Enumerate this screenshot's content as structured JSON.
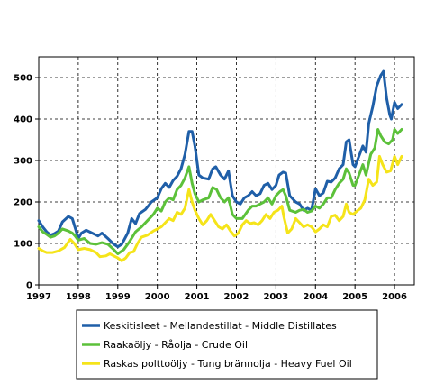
{
  "chart_data": {
    "type": "line",
    "title": "",
    "xlabel": "",
    "ylabel": "",
    "xlim": [
      1997.0,
      2006.5
    ],
    "ylim": [
      0,
      550
    ],
    "x_ticks": [
      "1997",
      "1998",
      "1999",
      "2000",
      "2001",
      "2002",
      "2003",
      "2004",
      "2005",
      "2006"
    ],
    "y_ticks": [
      "0",
      "100",
      "200",
      "300",
      "400",
      "500"
    ],
    "grid": true,
    "legend_position": "bottom",
    "series": [
      {
        "name": "Keskitisleet - Mellandestillat - Middle Distillates",
        "color": "#1f5fa8",
        "points": [
          [
            1997.0,
            155
          ],
          [
            1997.1,
            140
          ],
          [
            1997.2,
            128
          ],
          [
            1997.3,
            120
          ],
          [
            1997.4,
            124
          ],
          [
            1997.5,
            130
          ],
          [
            1997.6,
            152
          ],
          [
            1997.75,
            165
          ],
          [
            1997.85,
            160
          ],
          [
            1997.92,
            138
          ],
          [
            1998.0,
            112
          ],
          [
            1998.08,
            125
          ],
          [
            1998.2,
            132
          ],
          [
            1998.35,
            125
          ],
          [
            1998.5,
            118
          ],
          [
            1998.6,
            125
          ],
          [
            1998.75,
            112
          ],
          [
            1998.9,
            98
          ],
          [
            1999.0,
            92
          ],
          [
            1999.1,
            98
          ],
          [
            1999.25,
            125
          ],
          [
            1999.35,
            160
          ],
          [
            1999.45,
            148
          ],
          [
            1999.55,
            172
          ],
          [
            1999.7,
            182
          ],
          [
            1999.85,
            200
          ],
          [
            2000.0,
            210
          ],
          [
            2000.1,
            232
          ],
          [
            2000.2,
            245
          ],
          [
            2000.3,
            235
          ],
          [
            2000.4,
            252
          ],
          [
            2000.5,
            262
          ],
          [
            2000.6,
            280
          ],
          [
            2000.7,
            315
          ],
          [
            2000.8,
            370
          ],
          [
            2000.88,
            370
          ],
          [
            2000.95,
            335
          ],
          [
            2001.05,
            265
          ],
          [
            2001.15,
            258
          ],
          [
            2001.3,
            255
          ],
          [
            2001.4,
            280
          ],
          [
            2001.48,
            285
          ],
          [
            2001.6,
            265
          ],
          [
            2001.7,
            255
          ],
          [
            2001.8,
            275
          ],
          [
            2001.9,
            215
          ],
          [
            2002.0,
            200
          ],
          [
            2002.1,
            195
          ],
          [
            2002.2,
            210
          ],
          [
            2002.3,
            215
          ],
          [
            2002.4,
            225
          ],
          [
            2002.5,
            215
          ],
          [
            2002.6,
            220
          ],
          [
            2002.7,
            240
          ],
          [
            2002.8,
            245
          ],
          [
            2002.9,
            230
          ],
          [
            2003.0,
            240
          ],
          [
            2003.08,
            265
          ],
          [
            2003.18,
            272
          ],
          [
            2003.25,
            270
          ],
          [
            2003.35,
            215
          ],
          [
            2003.5,
            200
          ],
          [
            2003.6,
            195
          ],
          [
            2003.7,
            180
          ],
          [
            2003.8,
            185
          ],
          [
            2003.9,
            180
          ],
          [
            2004.0,
            232
          ],
          [
            2004.1,
            215
          ],
          [
            2004.2,
            222
          ],
          [
            2004.3,
            250
          ],
          [
            2004.4,
            248
          ],
          [
            2004.5,
            258
          ],
          [
            2004.6,
            280
          ],
          [
            2004.7,
            290
          ],
          [
            2004.78,
            345
          ],
          [
            2004.85,
            350
          ],
          [
            2004.95,
            290
          ],
          [
            2005.0,
            285
          ],
          [
            2005.1,
            310
          ],
          [
            2005.2,
            335
          ],
          [
            2005.28,
            320
          ],
          [
            2005.35,
            390
          ],
          [
            2005.45,
            430
          ],
          [
            2005.55,
            480
          ],
          [
            2005.65,
            505
          ],
          [
            2005.72,
            515
          ],
          [
            2005.8,
            450
          ],
          [
            2005.88,
            410
          ],
          [
            2005.92,
            400
          ],
          [
            2006.0,
            440
          ],
          [
            2006.08,
            425
          ],
          [
            2006.18,
            435
          ]
        ]
      },
      {
        "name": "Raakaöljy - Råolja - Crude Oil",
        "color": "#5cc13a",
        "points": [
          [
            1997.0,
            140
          ],
          [
            1997.1,
            128
          ],
          [
            1997.2,
            122
          ],
          [
            1997.3,
            115
          ],
          [
            1997.4,
            118
          ],
          [
            1997.5,
            125
          ],
          [
            1997.6,
            135
          ],
          [
            1997.75,
            130
          ],
          [
            1997.85,
            125
          ],
          [
            1997.92,
            118
          ],
          [
            1998.0,
            108
          ],
          [
            1998.15,
            112
          ],
          [
            1998.3,
            100
          ],
          [
            1998.45,
            98
          ],
          [
            1998.6,
            102
          ],
          [
            1998.75,
            98
          ],
          [
            1998.9,
            85
          ],
          [
            1999.0,
            75
          ],
          [
            1999.15,
            85
          ],
          [
            1999.3,
            105
          ],
          [
            1999.45,
            128
          ],
          [
            1999.6,
            140
          ],
          [
            1999.75,
            155
          ],
          [
            1999.9,
            170
          ],
          [
            2000.0,
            185
          ],
          [
            2000.1,
            178
          ],
          [
            2000.2,
            200
          ],
          [
            2000.3,
            210
          ],
          [
            2000.4,
            205
          ],
          [
            2000.5,
            230
          ],
          [
            2000.6,
            240
          ],
          [
            2000.7,
            258
          ],
          [
            2000.8,
            285
          ],
          [
            2000.88,
            245
          ],
          [
            2000.95,
            220
          ],
          [
            2001.05,
            200
          ],
          [
            2001.15,
            205
          ],
          [
            2001.3,
            210
          ],
          [
            2001.4,
            235
          ],
          [
            2001.5,
            230
          ],
          [
            2001.6,
            210
          ],
          [
            2001.7,
            200
          ],
          [
            2001.8,
            210
          ],
          [
            2001.9,
            170
          ],
          [
            2002.0,
            160
          ],
          [
            2002.15,
            160
          ],
          [
            2002.3,
            180
          ],
          [
            2002.4,
            190
          ],
          [
            2002.5,
            190
          ],
          [
            2002.6,
            195
          ],
          [
            2002.7,
            200
          ],
          [
            2002.8,
            210
          ],
          [
            2002.9,
            195
          ],
          [
            2003.0,
            215
          ],
          [
            2003.1,
            225
          ],
          [
            2003.18,
            230
          ],
          [
            2003.25,
            215
          ],
          [
            2003.35,
            180
          ],
          [
            2003.5,
            175
          ],
          [
            2003.6,
            180
          ],
          [
            2003.7,
            182
          ],
          [
            2003.8,
            175
          ],
          [
            2003.9,
            178
          ],
          [
            2004.0,
            190
          ],
          [
            2004.1,
            185
          ],
          [
            2004.2,
            195
          ],
          [
            2004.3,
            210
          ],
          [
            2004.4,
            210
          ],
          [
            2004.5,
            230
          ],
          [
            2004.6,
            245
          ],
          [
            2004.7,
            255
          ],
          [
            2004.78,
            280
          ],
          [
            2004.85,
            270
          ],
          [
            2004.95,
            240
          ],
          [
            2005.0,
            240
          ],
          [
            2005.1,
            265
          ],
          [
            2005.2,
            290
          ],
          [
            2005.28,
            265
          ],
          [
            2005.4,
            315
          ],
          [
            2005.5,
            330
          ],
          [
            2005.58,
            375
          ],
          [
            2005.65,
            360
          ],
          [
            2005.75,
            345
          ],
          [
            2005.85,
            340
          ],
          [
            2005.95,
            350
          ],
          [
            2006.0,
            375
          ],
          [
            2006.08,
            365
          ],
          [
            2006.18,
            375
          ]
        ]
      },
      {
        "name": "Raskas polttoöljy - Tung brännolja - Heavy Fuel Oil",
        "color": "#f5e41a",
        "points": [
          [
            1997.0,
            88
          ],
          [
            1997.1,
            82
          ],
          [
            1997.2,
            78
          ],
          [
            1997.35,
            78
          ],
          [
            1997.5,
            82
          ],
          [
            1997.65,
            90
          ],
          [
            1997.8,
            110
          ],
          [
            1997.9,
            100
          ],
          [
            1998.0,
            85
          ],
          [
            1998.15,
            88
          ],
          [
            1998.3,
            85
          ],
          [
            1998.45,
            78
          ],
          [
            1998.55,
            68
          ],
          [
            1998.7,
            70
          ],
          [
            1998.8,
            75
          ],
          [
            1998.9,
            70
          ],
          [
            1999.0,
            65
          ],
          [
            1999.1,
            58
          ],
          [
            1999.2,
            65
          ],
          [
            1999.3,
            78
          ],
          [
            1999.4,
            80
          ],
          [
            1999.5,
            100
          ],
          [
            1999.6,
            115
          ],
          [
            1999.75,
            120
          ],
          [
            1999.9,
            130
          ],
          [
            2000.0,
            135
          ],
          [
            2000.1,
            140
          ],
          [
            2000.2,
            150
          ],
          [
            2000.3,
            160
          ],
          [
            2000.4,
            155
          ],
          [
            2000.5,
            175
          ],
          [
            2000.6,
            170
          ],
          [
            2000.7,
            185
          ],
          [
            2000.8,
            230
          ],
          [
            2000.88,
            200
          ],
          [
            2000.95,
            180
          ],
          [
            2001.05,
            160
          ],
          [
            2001.15,
            145
          ],
          [
            2001.25,
            155
          ],
          [
            2001.35,
            170
          ],
          [
            2001.45,
            155
          ],
          [
            2001.55,
            140
          ],
          [
            2001.65,
            135
          ],
          [
            2001.75,
            145
          ],
          [
            2001.85,
            130
          ],
          [
            2001.95,
            118
          ],
          [
            2002.05,
            125
          ],
          [
            2002.15,
            145
          ],
          [
            2002.25,
            155
          ],
          [
            2002.35,
            148
          ],
          [
            2002.45,
            150
          ],
          [
            2002.55,
            145
          ],
          [
            2002.65,
            155
          ],
          [
            2002.75,
            170
          ],
          [
            2002.85,
            160
          ],
          [
            2002.95,
            175
          ],
          [
            2003.05,
            180
          ],
          [
            2003.15,
            190
          ],
          [
            2003.2,
            165
          ],
          [
            2003.3,
            125
          ],
          [
            2003.4,
            135
          ],
          [
            2003.5,
            160
          ],
          [
            2003.6,
            150
          ],
          [
            2003.7,
            140
          ],
          [
            2003.8,
            145
          ],
          [
            2003.9,
            140
          ],
          [
            2004.0,
            128
          ],
          [
            2004.1,
            135
          ],
          [
            2004.2,
            145
          ],
          [
            2004.3,
            140
          ],
          [
            2004.4,
            165
          ],
          [
            2004.5,
            168
          ],
          [
            2004.6,
            155
          ],
          [
            2004.7,
            165
          ],
          [
            2004.78,
            195
          ],
          [
            2004.85,
            175
          ],
          [
            2004.95,
            170
          ],
          [
            2005.05,
            178
          ],
          [
            2005.15,
            185
          ],
          [
            2005.25,
            205
          ],
          [
            2005.35,
            255
          ],
          [
            2005.45,
            240
          ],
          [
            2005.55,
            248
          ],
          [
            2005.62,
            310
          ],
          [
            2005.7,
            290
          ],
          [
            2005.8,
            272
          ],
          [
            2005.9,
            275
          ],
          [
            2006.0,
            310
          ],
          [
            2006.08,
            290
          ],
          [
            2006.18,
            310
          ]
        ]
      }
    ]
  }
}
